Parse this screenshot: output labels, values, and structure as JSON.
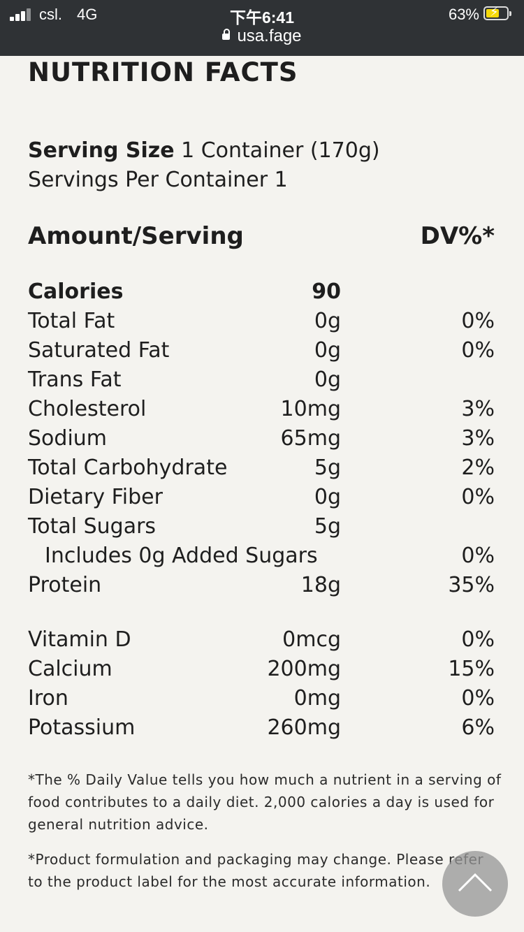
{
  "status_bar": {
    "carrier": "csl.",
    "network": "4G",
    "time": "下午6:41",
    "url": "usa.fage",
    "battery_percent": "63%",
    "battery_fill_fraction": 0.63,
    "colors": {
      "background": "#2f3235",
      "battery_fill": "#f5d90a"
    }
  },
  "page": {
    "title": "NUTRITION FACTS",
    "serving_size_label": "Serving Size",
    "serving_size_value": "1 Container (170g)",
    "servings_per_container": "Servings Per Container 1",
    "amount_header": "Amount/Serving",
    "dv_header": "DV%*"
  },
  "nutrients": [
    {
      "label": "Calories",
      "amount": "90",
      "dv": "",
      "bold": true
    },
    {
      "label": "Total Fat",
      "amount": "0g",
      "dv": "0%"
    },
    {
      "label": "Saturated Fat",
      "amount": "0g",
      "dv": "0%"
    },
    {
      "label": "Trans Fat",
      "amount": "0g",
      "dv": ""
    },
    {
      "label": "Cholesterol",
      "amount": "10mg",
      "dv": "3%"
    },
    {
      "label": "Sodium",
      "amount": "65mg",
      "dv": "3%"
    },
    {
      "label": "Total Carbohydrate",
      "amount": "5g",
      "dv": "2%"
    },
    {
      "label": "Dietary Fiber",
      "amount": "0g",
      "dv": "0%"
    },
    {
      "label": "Total Sugars",
      "amount": "5g",
      "dv": ""
    },
    {
      "label": "Includes 0g Added Sugars",
      "amount": "",
      "dv": "0%",
      "indent": true
    },
    {
      "label": "Protein",
      "amount": "18g",
      "dv": "35%"
    }
  ],
  "vitamins": [
    {
      "label": "Vitamin D",
      "amount": "0mcg",
      "dv": "0%"
    },
    {
      "label": "Calcium",
      "amount": "200mg",
      "dv": "15%"
    },
    {
      "label": "Iron",
      "amount": "0mg",
      "dv": "0%"
    },
    {
      "label": "Potassium",
      "amount": "260mg",
      "dv": "6%"
    }
  ],
  "notes": {
    "daily_value": "*The % Daily Value tells you how much a nutrient in a serving of food contributes to a daily diet. 2,000 calories a day is used for general nutrition advice.",
    "formulation": "*Product formulation and packaging may change. Please refer to the product label for the most accurate information."
  },
  "icons": {
    "scroll_top": "chevron-up-icon",
    "lock": "lock-icon",
    "signal": "signal-icon",
    "battery": "battery-icon"
  }
}
